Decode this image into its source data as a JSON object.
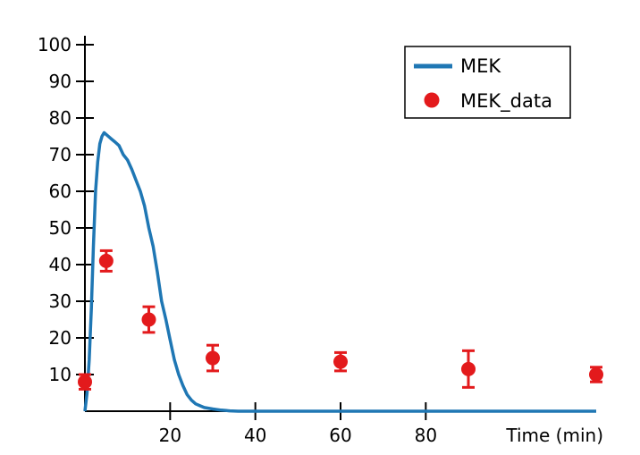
{
  "chart_data": {
    "type": "line",
    "title": "",
    "xlabel": "Time (min)",
    "ylabel": "",
    "xlim": [
      0,
      120
    ],
    "ylim": [
      0,
      100
    ],
    "xticks": [
      20,
      40,
      60,
      80
    ],
    "yticks": [
      10,
      20,
      30,
      40,
      50,
      60,
      70,
      80,
      90,
      100
    ],
    "grid": false,
    "legend_position": "top-right",
    "series": [
      {
        "name": "MEK",
        "kind": "line",
        "color": "#1f77b4",
        "x": [
          0,
          0.5,
          1,
          1.5,
          2,
          2.5,
          3,
          3.5,
          4,
          4.5,
          5,
          6,
          7,
          8,
          9,
          10,
          11,
          12,
          13,
          14,
          15,
          16,
          17,
          18,
          19,
          20,
          21,
          22,
          23,
          24,
          25,
          26,
          27,
          28,
          30,
          32,
          34,
          36,
          40,
          50,
          60,
          70,
          80,
          90,
          100,
          110,
          120
        ],
        "y": [
          0,
          5,
          14,
          28,
          45,
          60,
          68,
          73,
          75,
          76,
          75.5,
          74.5,
          73.5,
          72.5,
          70,
          68.5,
          66,
          63,
          60,
          56,
          50,
          45,
          38,
          30,
          25,
          19.5,
          14,
          10,
          7,
          4.5,
          3,
          2,
          1.5,
          1,
          0.6,
          0.3,
          0.1,
          0,
          0,
          0,
          0,
          0,
          0,
          0,
          0,
          0,
          0
        ]
      },
      {
        "name": "MEK_data",
        "kind": "scatter",
        "color": "#e31a1c",
        "x": [
          0,
          5,
          15,
          30,
          60,
          90,
          120
        ],
        "y": [
          8,
          41,
          25,
          14.5,
          13.5,
          11.5,
          10
        ],
        "err": [
          2,
          2.8,
          3.5,
          3.5,
          2.5,
          5,
          2
        ]
      }
    ]
  }
}
